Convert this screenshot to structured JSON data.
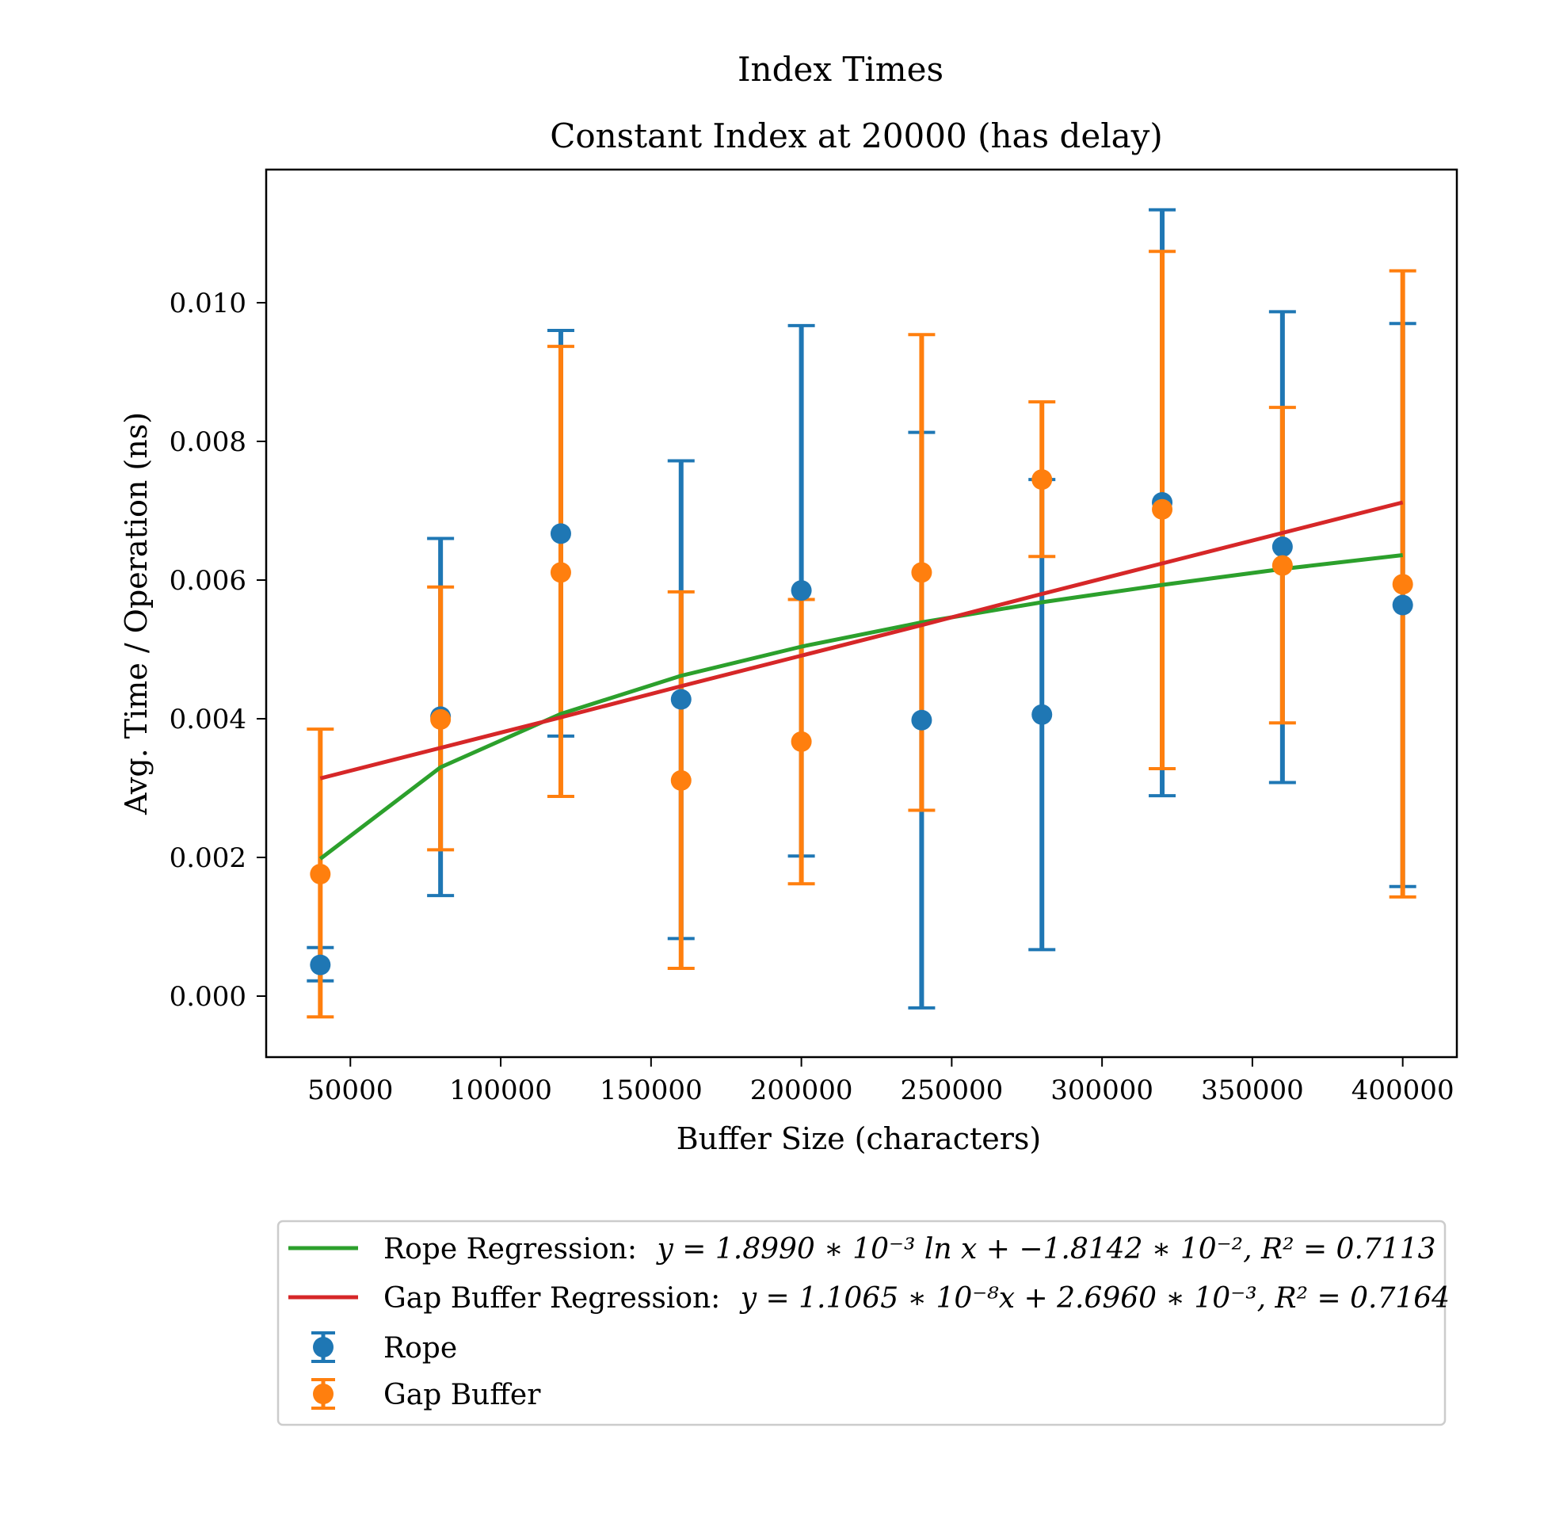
{
  "chart_data": {
    "type": "scatter",
    "title": "Index Times",
    "subtitle": "Constant Index at 20000 (has delay)",
    "xlabel": "Buffer Size (characters)",
    "ylabel": "Avg. Time / Operation (ns)",
    "xlim": [
      22000,
      418000
    ],
    "ylim": [
      -0.00088,
      0.01192
    ],
    "xticks": [
      50000,
      100000,
      150000,
      200000,
      250000,
      300000,
      350000,
      400000
    ],
    "xtick_labels": [
      "50000",
      "100000",
      "150000",
      "200000",
      "250000",
      "300000",
      "350000",
      "400000"
    ],
    "yticks": [
      0.0,
      0.002,
      0.004,
      0.006,
      0.008,
      0.01
    ],
    "ytick_labels": [
      "0.000",
      "0.002",
      "0.004",
      "0.006",
      "0.008",
      "0.010"
    ],
    "grid": false,
    "legend_position": "below plot",
    "x": [
      40000,
      80000,
      120000,
      160000,
      200000,
      240000,
      280000,
      320000,
      360000,
      400000
    ],
    "series": [
      {
        "name": "Rope",
        "kind": "errorbar",
        "color": "#1f77b4",
        "values": [
          0.00045,
          0.00403,
          0.00667,
          0.00428,
          0.00585,
          0.00398,
          0.00406,
          0.00712,
          0.00648,
          0.00564
        ],
        "err_low": [
          0.00022,
          0.00145,
          0.00375,
          0.00083,
          0.00202,
          -0.00017,
          0.00067,
          0.00289,
          0.00308,
          0.00158
        ],
        "err_high": [
          0.0007,
          0.0066,
          0.0096,
          0.00772,
          0.00967,
          0.00813,
          0.00745,
          0.01134,
          0.00987,
          0.0097
        ]
      },
      {
        "name": "Gap Buffer",
        "kind": "errorbar",
        "color": "#ff7f0e",
        "values": [
          0.00176,
          0.00399,
          0.00611,
          0.00311,
          0.00367,
          0.00611,
          0.00745,
          0.00702,
          0.00621,
          0.00594
        ],
        "err_low": [
          -0.0003,
          0.00211,
          0.00288,
          0.0004,
          0.00162,
          0.00268,
          0.00634,
          0.00328,
          0.00394,
          0.00143
        ],
        "err_high": [
          0.00385,
          0.0059,
          0.00937,
          0.00583,
          0.00572,
          0.00954,
          0.00857,
          0.01074,
          0.00849,
          0.01046
        ]
      },
      {
        "name": "Rope Regression: y = 1.8990 * 10^-3 ln x + -1.8142 * 10^-2, R^2 = 0.7113",
        "kind": "line",
        "color": "#2ca02c",
        "values": [
          0.00198,
          0.0033,
          0.00407,
          0.00462,
          0.00504,
          0.00539,
          0.00568,
          0.00593,
          0.00616,
          0.00636
        ]
      },
      {
        "name": "Gap Buffer Regression: y = 1.1065 * 10^-8 x + 2.6960 * 10^-3, R^2 = 0.7164",
        "kind": "line",
        "color": "#d62728",
        "values": [
          0.00314,
          0.00358,
          0.00402,
          0.00447,
          0.00491,
          0.00535,
          0.0058,
          0.00624,
          0.00668,
          0.00712
        ]
      }
    ],
    "legend": {
      "rope_regression": {
        "lead": "Rope Regression:",
        "eq": "y = 1.8990 ∗ 10⁻³ ln x + −1.8142 ∗ 10⁻², R² = 0.7113"
      },
      "gap_regression": {
        "lead": "Gap Buffer Regression:",
        "eq": "y = 1.1065 ∗ 10⁻⁸x + 2.6960 ∗ 10⁻³, R² = 0.7164"
      },
      "rope": "Rope",
      "gap": "Gap Buffer"
    }
  }
}
